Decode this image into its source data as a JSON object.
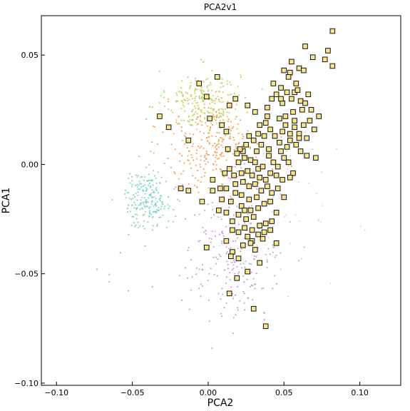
{
  "chart_data": {
    "type": "scatter",
    "title": "PCA2v1",
    "xlabel": "PCA2",
    "ylabel": "PCA1",
    "xlim": [
      -0.11,
      0.127
    ],
    "ylim": [
      -0.101,
      0.068
    ],
    "grid": false,
    "x_ticks": [
      -0.1,
      -0.05,
      0.0,
      0.05,
      0.1
    ],
    "x_tick_labels": [
      "−0.10",
      "−0.05",
      "0.00",
      "0.05",
      "0.10"
    ],
    "y_ticks": [
      -0.1,
      -0.05,
      0.0,
      0.05
    ],
    "y_tick_labels": [
      "−0.10",
      "−0.05",
      "0.00",
      "0.05"
    ],
    "clusters": [
      {
        "color": "#bcd65a",
        "center": [
          -0.003,
          0.029
        ],
        "spread": [
          0.012,
          0.007
        ],
        "count": 230
      },
      {
        "color": "#f0a050",
        "center": [
          0.005,
          0.009
        ],
        "spread": [
          0.017,
          0.011
        ],
        "count": 280
      },
      {
        "color": "#7fd3c4",
        "center": [
          -0.04,
          -0.016
        ],
        "spread": [
          0.008,
          0.0065
        ],
        "count": 210
      },
      {
        "color": "#c29bd4",
        "center": [
          0.018,
          -0.042
        ],
        "spread": [
          0.016,
          0.015
        ],
        "count": 220
      },
      {
        "color": "#e8c8e8",
        "center": [
          0.045,
          -0.02
        ],
        "spread": [
          0.02,
          0.015
        ],
        "count": 50
      },
      {
        "color": "#c29bd4",
        "center": [
          -0.06,
          -0.05
        ],
        "spread": [
          0.015,
          0.008
        ],
        "count": 6
      }
    ],
    "highlight": {
      "color": "#f7e58a",
      "edge_color": "#111111",
      "marker": "square",
      "points": [
        [
          0.082,
          0.061
        ],
        [
          0.079,
          0.052
        ],
        [
          0.082,
          0.045
        ],
        [
          0.077,
          0.048
        ],
        [
          0.064,
          0.054
        ],
        [
          0.055,
          0.047
        ],
        [
          0.069,
          0.049
        ],
        [
          0.06,
          0.044
        ],
        [
          0.063,
          0.043
        ],
        [
          0.054,
          0.042
        ],
        [
          0.053,
          0.04
        ],
        [
          0.057,
          0.033
        ],
        [
          0.059,
          0.034
        ],
        [
          0.048,
          0.035
        ],
        [
          0.055,
          0.03
        ],
        [
          0.061,
          0.029
        ],
        [
          0.045,
          0.032
        ],
        [
          0.042,
          0.03
        ],
        [
          0.049,
          0.028
        ],
        [
          0.051,
          0.022
        ],
        [
          0.056,
          0.024
        ],
        [
          0.064,
          0.028
        ],
        [
          0.068,
          0.025
        ],
        [
          0.073,
          0.022
        ],
        [
          0.067,
          0.02
        ],
        [
          0.051,
          0.018
        ],
        [
          0.049,
          0.015
        ],
        [
          0.057,
          0.017
        ],
        [
          0.06,
          0.014
        ],
        [
          0.063,
          0.018
        ],
        [
          0.065,
          0.012
        ],
        [
          0.07,
          0.016
        ],
        [
          0.054,
          0.011
        ],
        [
          0.052,
          0.008
        ],
        [
          0.058,
          0.009
        ],
        [
          0.061,
          0.006
        ],
        [
          0.048,
          0.006
        ],
        [
          0.047,
          0.01
        ],
        [
          0.044,
          0.013
        ],
        [
          0.041,
          0.016
        ],
        [
          0.038,
          0.019
        ],
        [
          0.034,
          0.018
        ],
        [
          0.037,
          0.013
        ],
        [
          0.035,
          0.009
        ],
        [
          0.032,
          0.006
        ],
        [
          0.03,
          0.011
        ],
        [
          0.027,
          0.013
        ],
        [
          0.025,
          0.009
        ],
        [
          0.023,
          0.006
        ],
        [
          0.021,
          0.007
        ],
        [
          0.019,
          0.005
        ],
        [
          0.02,
          0.001
        ],
        [
          0.024,
          0.003
        ],
        [
          0.028,
          0.002
        ],
        [
          0.031,
          0.001
        ],
        [
          0.033,
          -0.002
        ],
        [
          0.036,
          -0.001
        ],
        [
          0.04,
          0.004
        ],
        [
          0.043,
          0.001
        ],
        [
          0.046,
          -0.001
        ],
        [
          0.05,
          0.003
        ],
        [
          0.053,
          0.001
        ],
        [
          0.056,
          -0.004
        ],
        [
          0.065,
          0.004
        ],
        [
          0.071,
          0.003
        ],
        [
          0.045,
          -0.005
        ],
        [
          0.049,
          -0.007
        ],
        [
          0.054,
          -0.006
        ],
        [
          0.041,
          -0.004
        ],
        [
          0.038,
          -0.007
        ],
        [
          0.034,
          -0.006
        ],
        [
          0.029,
          -0.005
        ],
        [
          0.026,
          -0.003
        ],
        [
          0.022,
          -0.004
        ],
        [
          0.017,
          -0.005
        ],
        [
          0.014,
          -0.002
        ],
        [
          0.011,
          -0.004
        ],
        [
          0.018,
          -0.009
        ],
        [
          0.023,
          -0.008
        ],
        [
          0.027,
          -0.01
        ],
        [
          0.031,
          -0.009
        ],
        [
          0.035,
          -0.012
        ],
        [
          0.039,
          -0.01
        ],
        [
          0.042,
          -0.013
        ],
        [
          0.046,
          -0.011
        ],
        [
          0.05,
          -0.015
        ],
        [
          0.032,
          -0.015
        ],
        [
          0.027,
          -0.016
        ],
        [
          0.022,
          -0.014
        ],
        [
          0.018,
          -0.013
        ],
        [
          0.012,
          -0.011
        ],
        [
          0.009,
          -0.016
        ],
        [
          0.015,
          -0.017
        ],
        [
          0.022,
          -0.019
        ],
        [
          0.028,
          -0.021
        ],
        [
          0.033,
          -0.02
        ],
        [
          0.037,
          -0.018
        ],
        [
          0.041,
          -0.017
        ],
        [
          0.045,
          -0.022
        ],
        [
          0.03,
          -0.024
        ],
        [
          0.025,
          -0.025
        ],
        [
          0.02,
          -0.023
        ],
        [
          0.016,
          -0.026
        ],
        [
          0.012,
          -0.022
        ],
        [
          0.024,
          -0.029
        ],
        [
          0.029,
          -0.03
        ],
        [
          0.034,
          -0.028
        ],
        [
          0.038,
          -0.027
        ],
        [
          0.042,
          -0.026
        ],
        [
          0.02,
          -0.031
        ],
        [
          0.016,
          -0.03
        ],
        [
          0.033,
          -0.032
        ],
        [
          0.037,
          -0.031
        ],
        [
          0.026,
          -0.033
        ],
        [
          0.012,
          -0.035
        ],
        [
          0.023,
          -0.037
        ],
        [
          0.029,
          -0.035
        ],
        [
          0.036,
          -0.034
        ],
        [
          0.041,
          -0.03
        ],
        [
          -0.026,
          0.017
        ],
        [
          -0.032,
          0.022
        ],
        [
          -0.013,
          0.011
        ],
        [
          -0.018,
          -0.011
        ],
        [
          -0.013,
          -0.012
        ],
        [
          -0.004,
          -0.017
        ],
        [
          0.003,
          -0.012
        ],
        [
          0.009,
          0.018
        ],
        [
          0.001,
          0.021
        ],
        [
          0.014,
          0.027
        ],
        [
          0.018,
          0.03
        ],
        [
          0.006,
          0.04
        ],
        [
          -0.006,
          0.037
        ],
        [
          -0.001,
          0.031
        ],
        [
          0.031,
          0.024
        ],
        [
          0.039,
          0.026
        ],
        [
          0.048,
          0.03
        ],
        [
          0.033,
          0.014
        ],
        [
          0.039,
          0.022
        ],
        [
          0.047,
          0.021
        ],
        [
          0.066,
          0.032
        ],
        [
          0.062,
          0.025
        ],
        [
          0.052,
          0.033
        ],
        [
          0.058,
          0.037
        ],
        [
          0.05,
          0.043
        ],
        [
          0.007,
          -0.021
        ],
        [
          -0.001,
          -0.038
        ],
        [
          0.016,
          -0.04
        ],
        [
          0.015,
          -0.042
        ],
        [
          0.02,
          -0.043
        ],
        [
          0.031,
          -0.039
        ],
        [
          0.034,
          -0.045
        ],
        [
          0.026,
          -0.049
        ],
        [
          0.019,
          -0.052
        ],
        [
          0.014,
          -0.059
        ],
        [
          0.03,
          -0.066
        ],
        [
          0.038,
          -0.074
        ],
        [
          0.028,
          -0.036
        ],
        [
          0.045,
          -0.036
        ],
        [
          0.024,
          -0.021
        ],
        [
          0.008,
          -0.011
        ],
        [
          0.003,
          -0.007
        ],
        [
          0.013,
          0.007
        ],
        [
          0.012,
          0.015
        ],
        [
          0.04,
          0.007
        ],
        [
          0.026,
          0.027
        ],
        [
          0.043,
          0.037
        ],
        [
          0.057,
          0.02
        ],
        [
          0.054,
          0.014
        ],
        [
          0.06,
          0.012
        ]
      ]
    }
  }
}
